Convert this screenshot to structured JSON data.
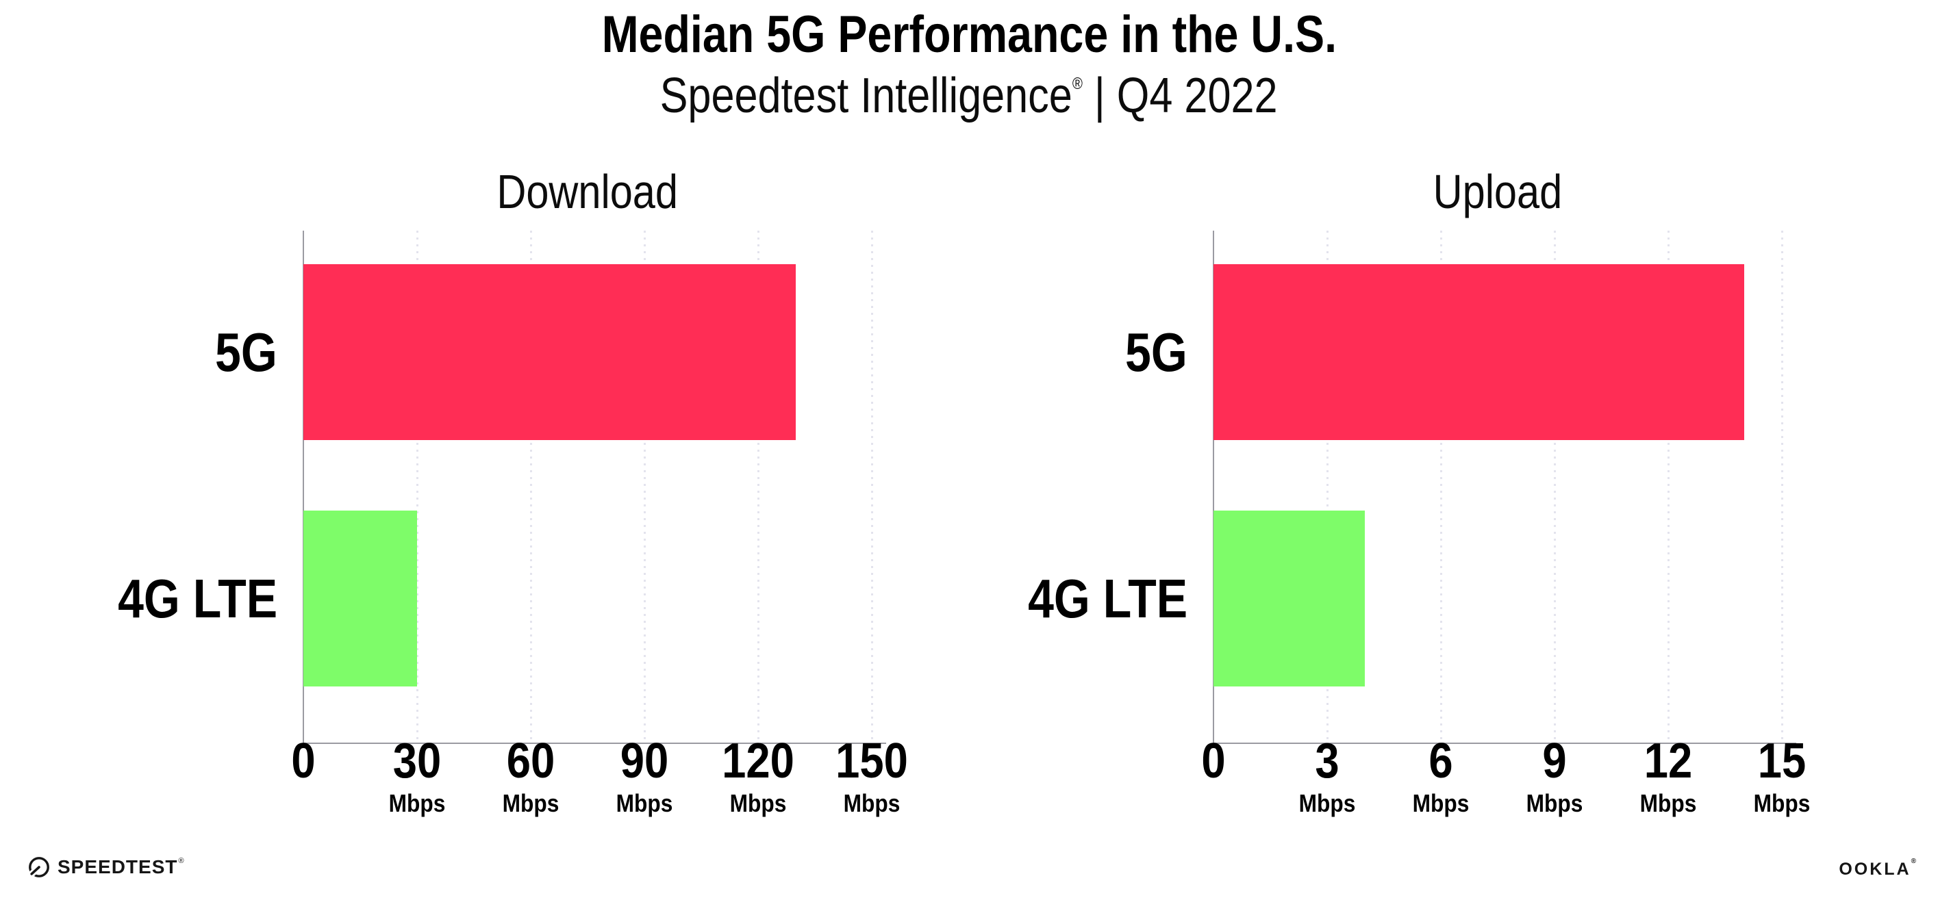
{
  "page": {
    "title": "Median 5G Performance in the U.S.",
    "subtitle_brand": "Speedtest Intelligence",
    "subtitle_reg": "®",
    "subtitle_tail": " | Q4 2022"
  },
  "colors": {
    "bar_5g": "#FF2D55",
    "bar_4g_lte": "#7EFC69",
    "gridline": "#E3E3ED",
    "axis": "#9B9BA2",
    "text": "#000000"
  },
  "chart_data": [
    {
      "type": "bar",
      "orientation": "horizontal",
      "title": "Download",
      "categories": [
        "5G",
        "4G LTE"
      ],
      "values": [
        130,
        30
      ],
      "unit": "Mbps",
      "xlim": [
        0,
        150
      ],
      "xticks": [
        0,
        30,
        60,
        90,
        120,
        150
      ],
      "tick_unit": "Mbps",
      "colors": [
        "#FF2D55",
        "#7EFC69"
      ],
      "grid": "vertical-dotted",
      "legend": "none"
    },
    {
      "type": "bar",
      "orientation": "horizontal",
      "title": "Upload",
      "categories": [
        "5G",
        "4G LTE"
      ],
      "values": [
        14,
        4
      ],
      "unit": "Mbps",
      "xlim": [
        0,
        15
      ],
      "xticks": [
        0,
        3,
        6,
        9,
        12,
        15
      ],
      "tick_unit": "Mbps",
      "colors": [
        "#FF2D55",
        "#7EFC69"
      ],
      "grid": "vertical-dotted",
      "legend": "none"
    }
  ],
  "footer": {
    "speedtest_label": "SPEEDTEST",
    "speedtest_reg": "®",
    "ookla_label": "OOKLA",
    "ookla_reg": "®"
  }
}
